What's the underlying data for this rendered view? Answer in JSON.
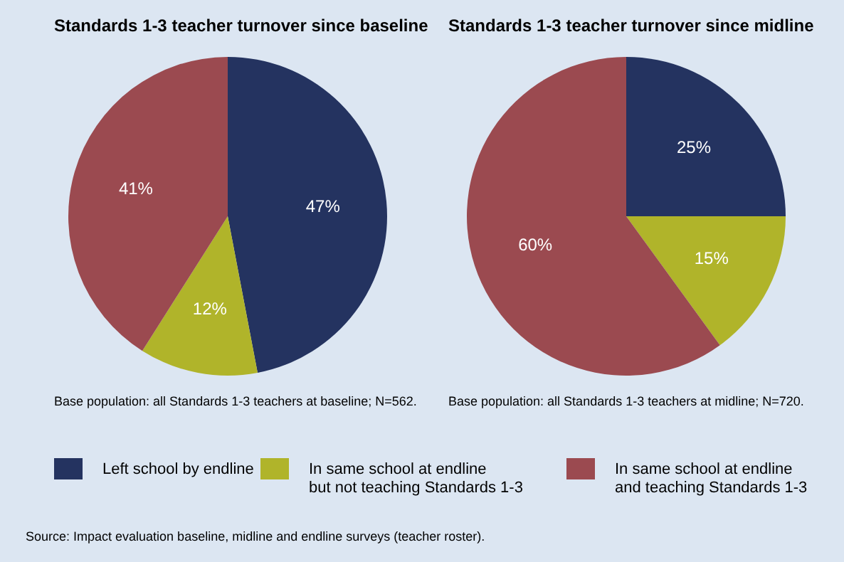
{
  "chart_data": [
    {
      "type": "pie",
      "title": "Standards 1-3 teacher turnover since baseline",
      "categories": [
        "Left school by endline",
        "In same school at endline but not teaching Standards 1-3",
        "In same school at endline and teaching Standards 1-3"
      ],
      "values": [
        47,
        12,
        41
      ],
      "value_labels": [
        "47%",
        "12%",
        "41%"
      ],
      "colors": [
        "#243360",
        "#b0b42a",
        "#9b4a50"
      ],
      "legend": "bottom",
      "annotations": [
        "Base population: all Standards 1-3 teachers at baseline; N=562."
      ]
    },
    {
      "type": "pie",
      "title": "Standards 1-3 teacher turnover since midline",
      "categories": [
        null,
        null,
        null
      ],
      "values": [
        25,
        15,
        60
      ],
      "value_labels": [
        "25%",
        "15%",
        "60%"
      ],
      "colors": [
        "#243360",
        "#b0b42a",
        "#9b4a50"
      ],
      "annotations": [
        "Base population: all Standards 1-3 teachers at midline; N=720.",
        "Source: Impact evaluation baseline, midline and endline surveys (teacher roster)."
      ]
    }
  ]
}
